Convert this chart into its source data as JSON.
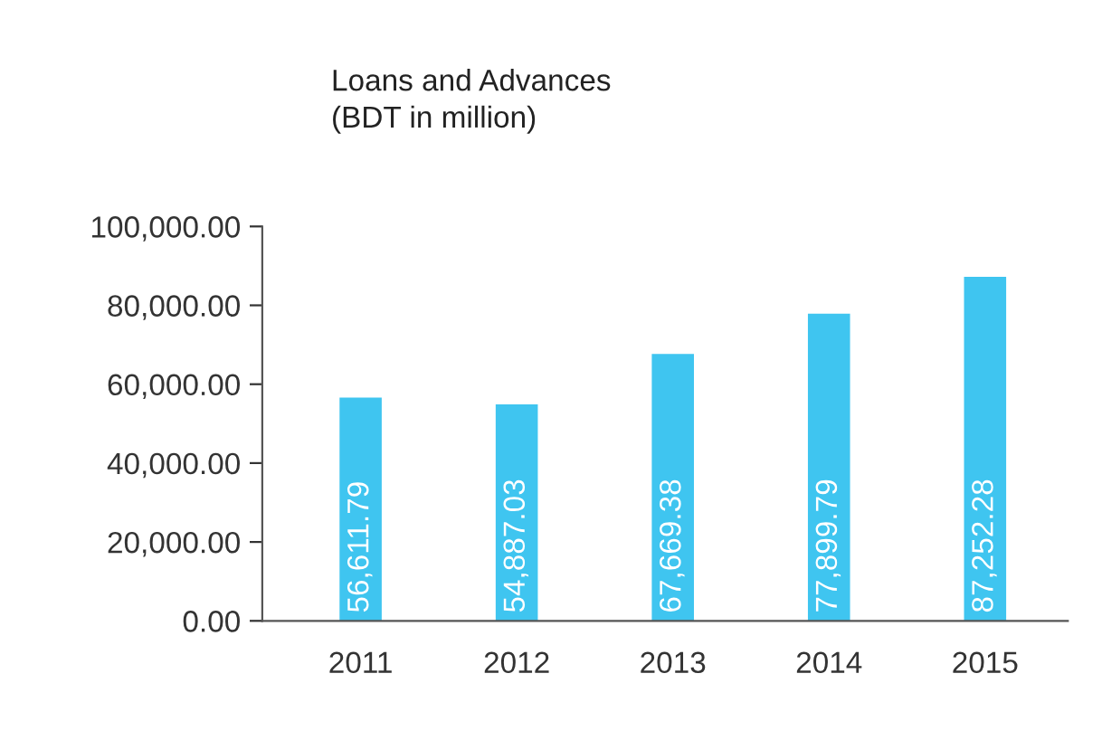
{
  "chart_data": {
    "type": "bar",
    "title": "Loans and Advances\n(BDT in million)",
    "categories": [
      "2011",
      "2012",
      "2013",
      "2014",
      "2015"
    ],
    "values": [
      56611.79,
      54887.03,
      67669.38,
      77899.79,
      87252.28
    ],
    "value_labels": [
      "56,611.79",
      "54,887.03",
      "67,669.38",
      "77,899.79",
      "87,252.28"
    ],
    "color": "#3fc5f0",
    "ylim": [
      0,
      100000
    ],
    "yticks": [
      {
        "value": 0,
        "label": "0.00"
      },
      {
        "value": 20000,
        "label": "20,000.00"
      },
      {
        "value": 40000,
        "label": "40,000.00"
      },
      {
        "value": 60000,
        "label": "60,000.00"
      },
      {
        "value": 80000,
        "label": "80,000.00"
      },
      {
        "value": 100000,
        "label": "100,000.00"
      }
    ],
    "grid": false,
    "legend": false
  }
}
